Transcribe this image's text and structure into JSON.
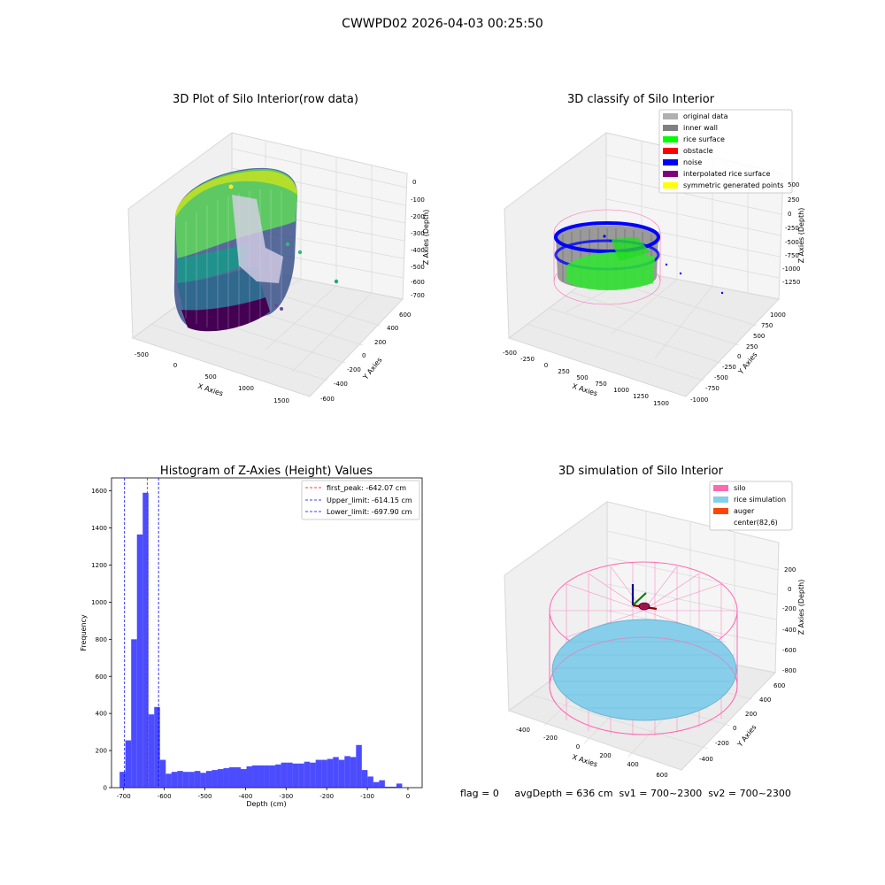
{
  "suptitle": "CWWPD02 2026-04-03 00:25:50",
  "panels": {
    "raw": {
      "title": "3D Plot of Silo Interior(row data)",
      "xlabel": "X Axies",
      "ylabel": "Y Axies",
      "zlabel": "Z Axies (Depth)",
      "xticks": [
        "-500",
        "0",
        "500",
        "1000",
        "1500"
      ],
      "yticks": [
        "600",
        "400",
        "200",
        "0",
        "-200",
        "-400",
        "-600"
      ],
      "zticks": [
        "0",
        "-100",
        "-200",
        "-300",
        "-400",
        "-500",
        "-600",
        "-700"
      ],
      "colormap": "viridis"
    },
    "classify": {
      "title": "3D classify of Silo Interior",
      "xlabel": "X Axies",
      "ylabel": "Y Axies",
      "zlabel": "Z Axies (Depth)",
      "xticks": [
        "-500",
        "-250",
        "0",
        "250",
        "500",
        "750",
        "1000",
        "1250",
        "1500"
      ],
      "yticks": [
        "1000",
        "750",
        "500",
        "250",
        "0",
        "-250",
        "-500",
        "-750",
        "-1000"
      ],
      "zticks": [
        "500",
        "250",
        "0",
        "-250",
        "-500",
        "-750",
        "-1000",
        "-1250"
      ],
      "legend": [
        {
          "label": "original data",
          "color": "#b0b0b0"
        },
        {
          "label": "inner wall",
          "color": "#808080"
        },
        {
          "label": "rice surface",
          "color": "#00ff00"
        },
        {
          "label": "obstacle",
          "color": "#ff0000"
        },
        {
          "label": "noise",
          "color": "#0000ff"
        },
        {
          "label": "interpolated rice surface",
          "color": "#800080"
        },
        {
          "label": "symmetric generated points",
          "color": "#ffff00"
        }
      ]
    },
    "simulation": {
      "title": "3D simulation of Silo Interior",
      "xlabel": "X Axies",
      "ylabel": "Y Axies",
      "zlabel": "Z Axies (Depth)",
      "xticks": [
        "-400",
        "-200",
        "0",
        "200",
        "400",
        "600"
      ],
      "yticks": [
        "600",
        "400",
        "200",
        "0",
        "-200",
        "-400"
      ],
      "zticks": [
        "200",
        "0",
        "-200",
        "-400",
        "-600",
        "-800"
      ],
      "legend": [
        {
          "label": "silo",
          "color": "#ff69b4"
        },
        {
          "label": "rice simulation",
          "color": "#87ceeb"
        },
        {
          "label": "auger",
          "color": "#ff4500"
        },
        {
          "label": "center(82,6)",
          "color": ""
        }
      ],
      "status": "flag = 0     avgDepth = 636 cm  sv1 = 700~2300  sv2 = 700~2300"
    }
  },
  "chart_data": {
    "type": "bar",
    "title": "Histogram of Z-Axies (Height) Values",
    "xlabel": "Depth (cm)",
    "ylabel": "Frequency",
    "xlim": [
      -730,
      35
    ],
    "ylim": [
      0,
      1670
    ],
    "xticks": [
      -700,
      -600,
      -500,
      -400,
      -300,
      -200,
      -100,
      0
    ],
    "yticks": [
      0,
      200,
      400,
      600,
      800,
      1000,
      1200,
      1400,
      1600
    ],
    "bar_color": "#0000ff",
    "bin_start": -710,
    "bin_width": 14.2,
    "values": [
      85,
      255,
      800,
      1365,
      1590,
      395,
      435,
      150,
      75,
      85,
      90,
      85,
      85,
      90,
      80,
      90,
      95,
      100,
      105,
      110,
      110,
      100,
      115,
      120,
      120,
      120,
      120,
      125,
      135,
      135,
      130,
      130,
      140,
      135,
      150,
      150,
      155,
      165,
      150,
      170,
      165,
      230,
      95,
      60,
      30,
      40,
      5,
      5,
      22
    ],
    "vlines": [
      {
        "label": "first_peak: -642.07 cm",
        "x": -642.07,
        "color": "#ff0000"
      },
      {
        "label": "Upper_limit: -614.15 cm",
        "x": -614.15,
        "color": "#0000ff"
      },
      {
        "label": "Lower_limit: -697.90 cm",
        "x": -697.9,
        "color": "#0000ff"
      }
    ],
    "legend_position": "upper right"
  }
}
